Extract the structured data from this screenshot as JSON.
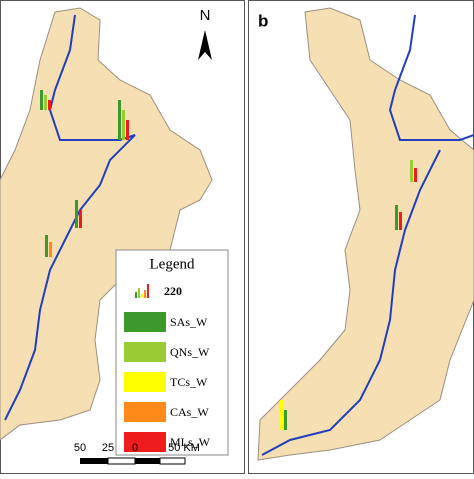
{
  "panels": {
    "left": {
      "north_label": "N"
    },
    "right": {
      "label": "b"
    }
  },
  "legend": {
    "title": "Legend",
    "sample_value": "220",
    "items": [
      {
        "name": "SAs_W",
        "color": "#3c9a2c"
      },
      {
        "name": "QNs_W",
        "color": "#99cc33"
      },
      {
        "name": "TCs_W",
        "color": "#ffff00"
      },
      {
        "name": "CAs_W",
        "color": "#ff8a1a"
      },
      {
        "name": "MLs_W",
        "color": "#ee1c1c"
      }
    ]
  },
  "scale_bar": {
    "labels": [
      "50",
      "25",
      "0",
      "50 KM"
    ]
  }
}
